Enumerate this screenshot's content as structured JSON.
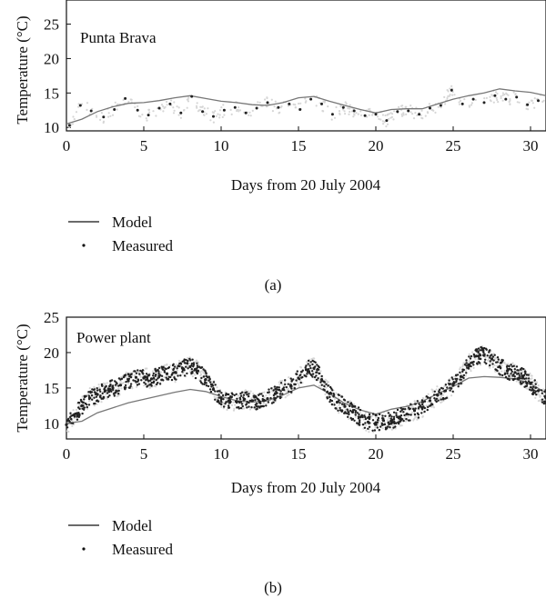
{
  "chart_data": [
    {
      "id": "a",
      "type": "line",
      "title": "Punta Brava",
      "caption": "(a)",
      "xlabel": "Days from 20 July 2004",
      "ylabel": "Temperature (°C)",
      "xlim": [
        0,
        31
      ],
      "ylim": [
        9.5,
        28.5
      ],
      "xticks": [
        0,
        5,
        10,
        15,
        20,
        25,
        30
      ],
      "yticks": [
        10,
        15,
        20,
        25
      ],
      "grid": false,
      "legend_placement": "below",
      "series": [
        {
          "name": "Model",
          "kind": "line",
          "color": "#777777",
          "x": [
            0,
            1,
            2,
            3,
            4,
            5,
            6,
            7,
            8,
            9,
            10,
            11,
            12,
            13,
            14,
            15,
            16,
            17,
            18,
            19,
            20,
            21,
            22,
            23,
            24,
            25,
            26,
            27,
            28,
            29,
            30,
            31
          ],
          "y": [
            10.5,
            11.2,
            12.3,
            13.0,
            13.5,
            13.6,
            13.9,
            14.3,
            14.6,
            14.2,
            13.8,
            13.6,
            13.3,
            13.2,
            13.6,
            14.3,
            14.5,
            13.8,
            13.2,
            12.6,
            12.1,
            12.6,
            12.7,
            12.7,
            13.4,
            14.1,
            14.6,
            15.0,
            15.6,
            15.3,
            15.1,
            14.6
          ]
        },
        {
          "name": "Measured",
          "kind": "points",
          "color": "#222222",
          "x": [
            0.2,
            0.9,
            1.6,
            2.4,
            3.1,
            3.8,
            4.6,
            5.3,
            6.0,
            6.7,
            7.4,
            8.1,
            8.8,
            9.5,
            10.2,
            10.9,
            11.6,
            12.3,
            13.0,
            13.7,
            14.4,
            15.1,
            15.8,
            16.5,
            17.2,
            17.9,
            18.6,
            19.3,
            20.0,
            20.7,
            21.4,
            22.1,
            22.8,
            23.5,
            24.2,
            24.9,
            25.6,
            26.3,
            27.0,
            27.7,
            28.4,
            29.1,
            29.8,
            30.5
          ],
          "y": [
            10.3,
            13.2,
            12.4,
            11.5,
            12.6,
            14.2,
            12.5,
            11.8,
            12.8,
            13.4,
            12.1,
            14.5,
            12.3,
            11.6,
            12.5,
            12.9,
            12.1,
            12.8,
            13.6,
            12.9,
            13.4,
            12.6,
            14.1,
            13.4,
            11.9,
            12.9,
            12.4,
            11.7,
            11.9,
            11.0,
            12.3,
            12.4,
            11.9,
            12.8,
            13.2,
            15.4,
            13.4,
            14.1,
            13.6,
            14.6,
            14.1,
            14.4,
            13.3,
            13.9
          ]
        }
      ]
    },
    {
      "id": "b",
      "type": "line",
      "title": "Power plant",
      "caption": "(b)",
      "xlabel": "Days from 20 July 2004",
      "ylabel": "Temperature (°C)",
      "xlim": [
        0,
        31
      ],
      "ylim": [
        7.8,
        25
      ],
      "xticks": [
        0,
        5,
        10,
        15,
        20,
        25,
        30
      ],
      "yticks": [
        10,
        15,
        20,
        25
      ],
      "grid": false,
      "legend_placement": "below",
      "series": [
        {
          "name": "Model",
          "kind": "line",
          "color": "#777777",
          "x": [
            0,
            1,
            2,
            3,
            4,
            5,
            6,
            7,
            8,
            9,
            10,
            11,
            12,
            13,
            14,
            15,
            16,
            17,
            18,
            19,
            20,
            21,
            22,
            23,
            24,
            25,
            26,
            27,
            28,
            29,
            30,
            31
          ],
          "y": [
            10.0,
            10.3,
            11.5,
            12.2,
            12.9,
            13.4,
            13.9,
            14.4,
            14.8,
            14.5,
            13.8,
            13.2,
            13.0,
            13.2,
            14.0,
            15.0,
            15.4,
            14.2,
            12.8,
            11.9,
            11.3,
            12.0,
            12.4,
            13.1,
            14.2,
            15.2,
            16.4,
            16.6,
            16.5,
            16.3,
            15.6,
            14.3
          ]
        },
        {
          "name": "Measured",
          "kind": "points",
          "color": "#222222",
          "x": [
            0.0,
            0.5,
            1.0,
            1.5,
            2.0,
            2.5,
            3.0,
            3.5,
            4.0,
            4.5,
            5.0,
            5.5,
            6.0,
            6.5,
            7.0,
            7.5,
            8.0,
            8.5,
            9.0,
            9.5,
            10.0,
            10.5,
            11.0,
            11.5,
            12.0,
            12.5,
            13.0,
            13.5,
            14.0,
            14.5,
            15.0,
            15.5,
            16.0,
            16.5,
            17.0,
            17.5,
            18.0,
            18.5,
            19.0,
            19.5,
            20.0,
            20.5,
            21.0,
            21.5,
            22.0,
            22.5,
            23.0,
            23.5,
            24.0,
            24.5,
            25.0,
            25.5,
            26.0,
            26.5,
            27.0,
            27.5,
            28.0,
            28.5,
            29.0,
            29.5,
            30.0,
            30.5,
            31.0
          ],
          "y": [
            9.8,
            11.2,
            12.5,
            13.6,
            14.1,
            14.6,
            15.0,
            15.4,
            16.0,
            16.5,
            16.4,
            16.3,
            16.7,
            17.0,
            17.2,
            17.8,
            18.0,
            17.4,
            16.2,
            14.8,
            13.6,
            13.2,
            13.1,
            13.4,
            13.2,
            13.0,
            13.5,
            14.2,
            14.8,
            15.4,
            16.4,
            17.6,
            17.8,
            16.2,
            14.2,
            13.0,
            12.4,
            11.6,
            10.9,
            10.2,
            10.1,
            10.4,
            10.3,
            10.9,
            11.3,
            11.8,
            12.2,
            13.2,
            14.0,
            14.6,
            15.4,
            16.6,
            18.3,
            19.5,
            19.6,
            19.1,
            18.0,
            17.4,
            17.2,
            16.6,
            15.6,
            14.6,
            13.6
          ]
        }
      ]
    }
  ]
}
